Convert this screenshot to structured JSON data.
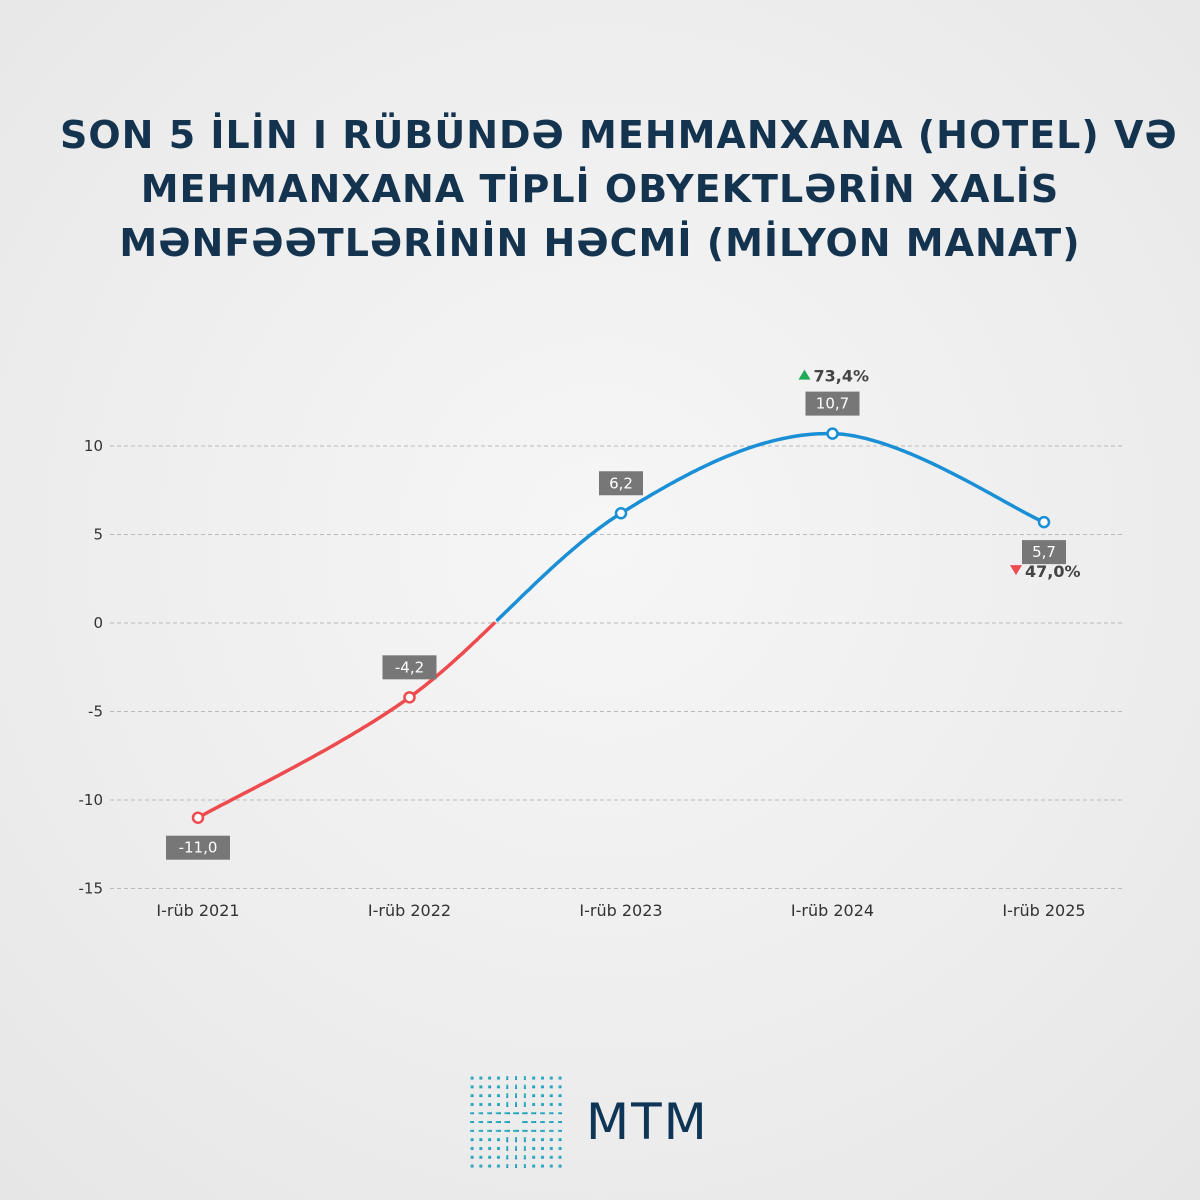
{
  "title_lines": [
    "SON 5 İLİN I RÜBÜNDƏ MEHMANXANA (HOTEL) VƏ",
    "MEHMANXANA TİPLİ OBYEKTLƏRİN XALİS",
    "MƏNFƏƏTLƏRİNİN HƏCMİ (MİLYON MANAT)"
  ],
  "brand": {
    "name": "MTM"
  },
  "colors": {
    "title": "#14334f",
    "negative": "#ee4b4f",
    "positive": "#1a8fd6",
    "up": "#1faa55",
    "down": "#ee4b4f",
    "label_box": "#777777"
  },
  "chart_data": {
    "type": "line",
    "categories": [
      "I-rüb 2021",
      "I-rüb 2022",
      "I-rüb 2023",
      "I-rüb 2024",
      "I-rüb 2025"
    ],
    "values": [
      -11.0,
      -4.2,
      6.2,
      10.7,
      5.7
    ],
    "value_labels": [
      "-11,0",
      "-4,2",
      "6,2",
      "10,7",
      "5,7"
    ],
    "ylim": [
      -15,
      12
    ],
    "yticks": [
      10,
      5,
      0,
      -5,
      -10,
      -15
    ],
    "grid": true,
    "annotations": [
      {
        "category": "I-rüb 2024",
        "direction": "up",
        "text": "73,4%"
      },
      {
        "category": "I-rüb 2025",
        "direction": "down",
        "text": "47,0%"
      }
    ]
  }
}
